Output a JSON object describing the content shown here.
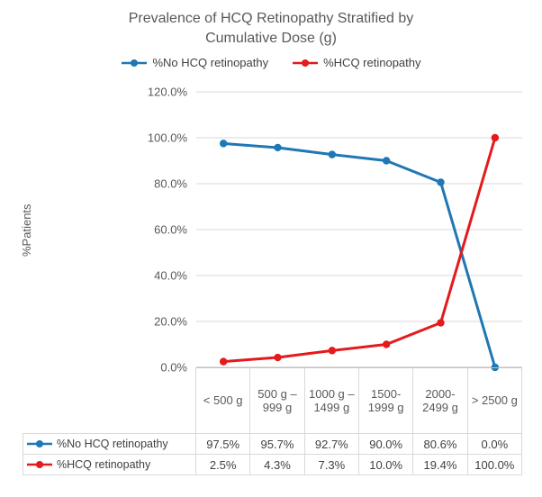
{
  "chart_data": {
    "type": "line",
    "title": "Prevalence of HCQ Retinopathy Stratified by Cumulative Dose (g)",
    "xlabel": "",
    "ylabel": "%Patients",
    "ylim": [
      0,
      120
    ],
    "grid": true,
    "legend_position": "top",
    "data_table": true,
    "grid_color": "#d9d9d9",
    "axis_color": "#bfbfbf",
    "categories": [
      "< 500 g",
      "500 g – 999 g",
      "1000 g – 1499 g",
      "1500-1999 g",
      "2000-2499 g",
      "> 2500 g"
    ],
    "y_ticks": [
      "0.0%",
      "20.0%",
      "40.0%",
      "60.0%",
      "80.0%",
      "100.0%",
      "120.0%"
    ],
    "series": [
      {
        "name": "%No HCQ retinopathy",
        "color": "#1F77B4",
        "values": [
          97.5,
          95.7,
          92.7,
          90.0,
          80.6,
          0.0
        ],
        "labels": [
          "97.5%",
          "95.7%",
          "92.7%",
          "90.0%",
          "80.6%",
          "0.0%"
        ]
      },
      {
        "name": "%HCQ retinopathy",
        "color": "#E41A1C",
        "values": [
          2.5,
          4.3,
          7.3,
          10.0,
          19.4,
          100.0
        ],
        "labels": [
          "2.5%",
          "4.3%",
          "7.3%",
          "10.0%",
          "19.4%",
          "100.0%"
        ]
      }
    ]
  }
}
